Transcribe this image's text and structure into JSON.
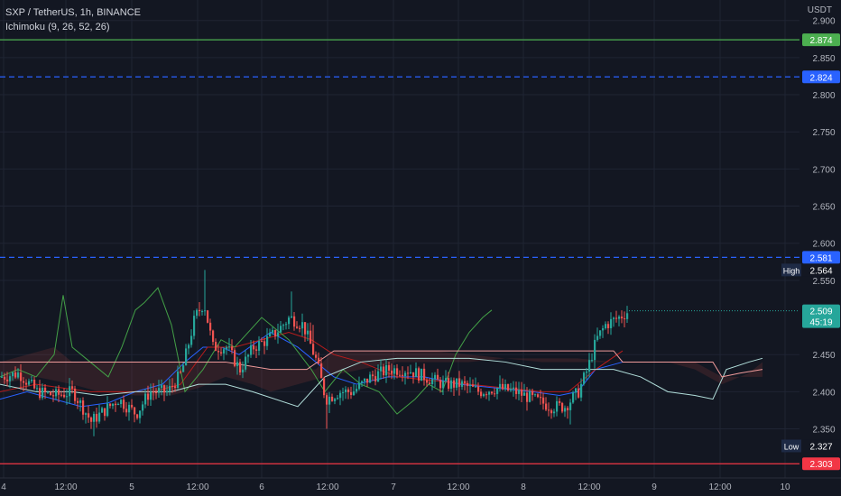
{
  "header": {
    "symbol": "SXP / TetherUS, 1h, BINANCE",
    "indicator": "Ichimoku (9, 26, 52, 26)",
    "currency": "USDT"
  },
  "colors": {
    "background": "#131722",
    "grid": "#1f2433",
    "up": "#26a69a",
    "down": "#ef5350",
    "green_line": "#4caf50",
    "red_line": "#f23645",
    "blue_line": "#2962ff",
    "conversion": "#2962ff",
    "base": "#b71c1c",
    "lagging": "#43a047",
    "span_a": "#a5d6a7",
    "span_b": "#ef9a9a"
  },
  "chart_data": {
    "type": "candlestick",
    "ylim": [
      2.296,
      2.913
    ],
    "y_ticks": [
      "2.900",
      "2.850",
      "2.800",
      "2.750",
      "2.700",
      "2.650",
      "2.600",
      "2.550",
      "2.450",
      "2.400",
      "2.350"
    ],
    "x_ticks": [
      "4",
      "12:00",
      "5",
      "12:00",
      "6",
      "12:00",
      "7",
      "12:00",
      "8",
      "12:00",
      "9",
      "12:00",
      "10"
    ],
    "horizontal_levels": [
      {
        "value": 2.874,
        "label": "2.874",
        "style": "solid",
        "color": "#4caf50"
      },
      {
        "value": 2.824,
        "label": "2.824",
        "style": "dashed",
        "color": "#2962ff"
      },
      {
        "value": 2.581,
        "label": "2.581",
        "style": "dashed",
        "color": "#2962ff"
      },
      {
        "value": 2.303,
        "label": "2.303",
        "style": "solid",
        "color": "#f23645"
      }
    ],
    "high": {
      "label": "High",
      "value": "2.564"
    },
    "low": {
      "label": "Low",
      "value": "2.327"
    },
    "last_price": {
      "value": "2.509",
      "countdown": "45:19"
    }
  }
}
